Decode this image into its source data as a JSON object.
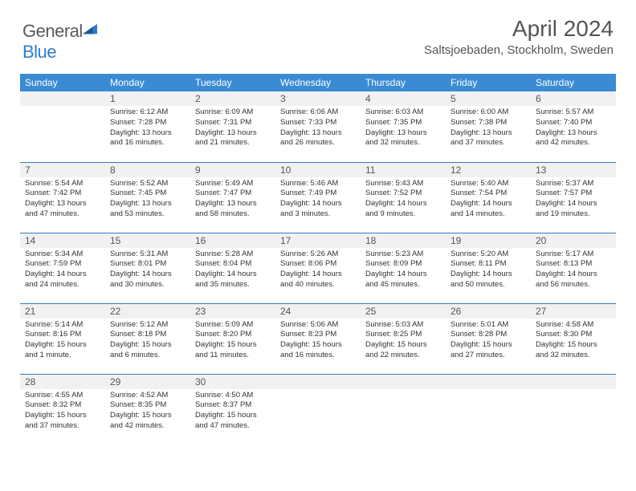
{
  "brand": {
    "text1": "General",
    "text2": "Blue"
  },
  "title": "April 2024",
  "location": "Saltsjoebaden, Stockholm, Sweden",
  "colors": {
    "header_bg": "#3b8bd4",
    "header_text": "#ffffff",
    "daynum_bg": "#f1f1f1",
    "daynum_text": "#555555",
    "cell_text": "#333333",
    "row_border": "#2f7dc4",
    "page_bg": "#ffffff",
    "logo_gray": "#5a5a5a",
    "logo_blue": "#2f7dc4"
  },
  "weekdays": [
    "Sunday",
    "Monday",
    "Tuesday",
    "Wednesday",
    "Thursday",
    "Friday",
    "Saturday"
  ],
  "weeks": [
    [
      null,
      {
        "n": "1",
        "sr": "6:12 AM",
        "ss": "7:28 PM",
        "dl": "13 hours and 16 minutes."
      },
      {
        "n": "2",
        "sr": "6:09 AM",
        "ss": "7:31 PM",
        "dl": "13 hours and 21 minutes."
      },
      {
        "n": "3",
        "sr": "6:06 AM",
        "ss": "7:33 PM",
        "dl": "13 hours and 26 minutes."
      },
      {
        "n": "4",
        "sr": "6:03 AM",
        "ss": "7:35 PM",
        "dl": "13 hours and 32 minutes."
      },
      {
        "n": "5",
        "sr": "6:00 AM",
        "ss": "7:38 PM",
        "dl": "13 hours and 37 minutes."
      },
      {
        "n": "6",
        "sr": "5:57 AM",
        "ss": "7:40 PM",
        "dl": "13 hours and 42 minutes."
      }
    ],
    [
      {
        "n": "7",
        "sr": "5:54 AM",
        "ss": "7:42 PM",
        "dl": "13 hours and 47 minutes."
      },
      {
        "n": "8",
        "sr": "5:52 AM",
        "ss": "7:45 PM",
        "dl": "13 hours and 53 minutes."
      },
      {
        "n": "9",
        "sr": "5:49 AM",
        "ss": "7:47 PM",
        "dl": "13 hours and 58 minutes."
      },
      {
        "n": "10",
        "sr": "5:46 AM",
        "ss": "7:49 PM",
        "dl": "14 hours and 3 minutes."
      },
      {
        "n": "11",
        "sr": "5:43 AM",
        "ss": "7:52 PM",
        "dl": "14 hours and 9 minutes."
      },
      {
        "n": "12",
        "sr": "5:40 AM",
        "ss": "7:54 PM",
        "dl": "14 hours and 14 minutes."
      },
      {
        "n": "13",
        "sr": "5:37 AM",
        "ss": "7:57 PM",
        "dl": "14 hours and 19 minutes."
      }
    ],
    [
      {
        "n": "14",
        "sr": "5:34 AM",
        "ss": "7:59 PM",
        "dl": "14 hours and 24 minutes."
      },
      {
        "n": "15",
        "sr": "5:31 AM",
        "ss": "8:01 PM",
        "dl": "14 hours and 30 minutes."
      },
      {
        "n": "16",
        "sr": "5:28 AM",
        "ss": "8:04 PM",
        "dl": "14 hours and 35 minutes."
      },
      {
        "n": "17",
        "sr": "5:26 AM",
        "ss": "8:06 PM",
        "dl": "14 hours and 40 minutes."
      },
      {
        "n": "18",
        "sr": "5:23 AM",
        "ss": "8:09 PM",
        "dl": "14 hours and 45 minutes."
      },
      {
        "n": "19",
        "sr": "5:20 AM",
        "ss": "8:11 PM",
        "dl": "14 hours and 50 minutes."
      },
      {
        "n": "20",
        "sr": "5:17 AM",
        "ss": "8:13 PM",
        "dl": "14 hours and 56 minutes."
      }
    ],
    [
      {
        "n": "21",
        "sr": "5:14 AM",
        "ss": "8:16 PM",
        "dl": "15 hours and 1 minute."
      },
      {
        "n": "22",
        "sr": "5:12 AM",
        "ss": "8:18 PM",
        "dl": "15 hours and 6 minutes."
      },
      {
        "n": "23",
        "sr": "5:09 AM",
        "ss": "8:20 PM",
        "dl": "15 hours and 11 minutes."
      },
      {
        "n": "24",
        "sr": "5:06 AM",
        "ss": "8:23 PM",
        "dl": "15 hours and 16 minutes."
      },
      {
        "n": "25",
        "sr": "5:03 AM",
        "ss": "8:25 PM",
        "dl": "15 hours and 22 minutes."
      },
      {
        "n": "26",
        "sr": "5:01 AM",
        "ss": "8:28 PM",
        "dl": "15 hours and 27 minutes."
      },
      {
        "n": "27",
        "sr": "4:58 AM",
        "ss": "8:30 PM",
        "dl": "15 hours and 32 minutes."
      }
    ],
    [
      {
        "n": "28",
        "sr": "4:55 AM",
        "ss": "8:32 PM",
        "dl": "15 hours and 37 minutes."
      },
      {
        "n": "29",
        "sr": "4:52 AM",
        "ss": "8:35 PM",
        "dl": "15 hours and 42 minutes."
      },
      {
        "n": "30",
        "sr": "4:50 AM",
        "ss": "8:37 PM",
        "dl": "15 hours and 47 minutes."
      },
      null,
      null,
      null,
      null
    ]
  ],
  "labels": {
    "sunrise": "Sunrise:",
    "sunset": "Sunset:",
    "daylight": "Daylight:"
  }
}
